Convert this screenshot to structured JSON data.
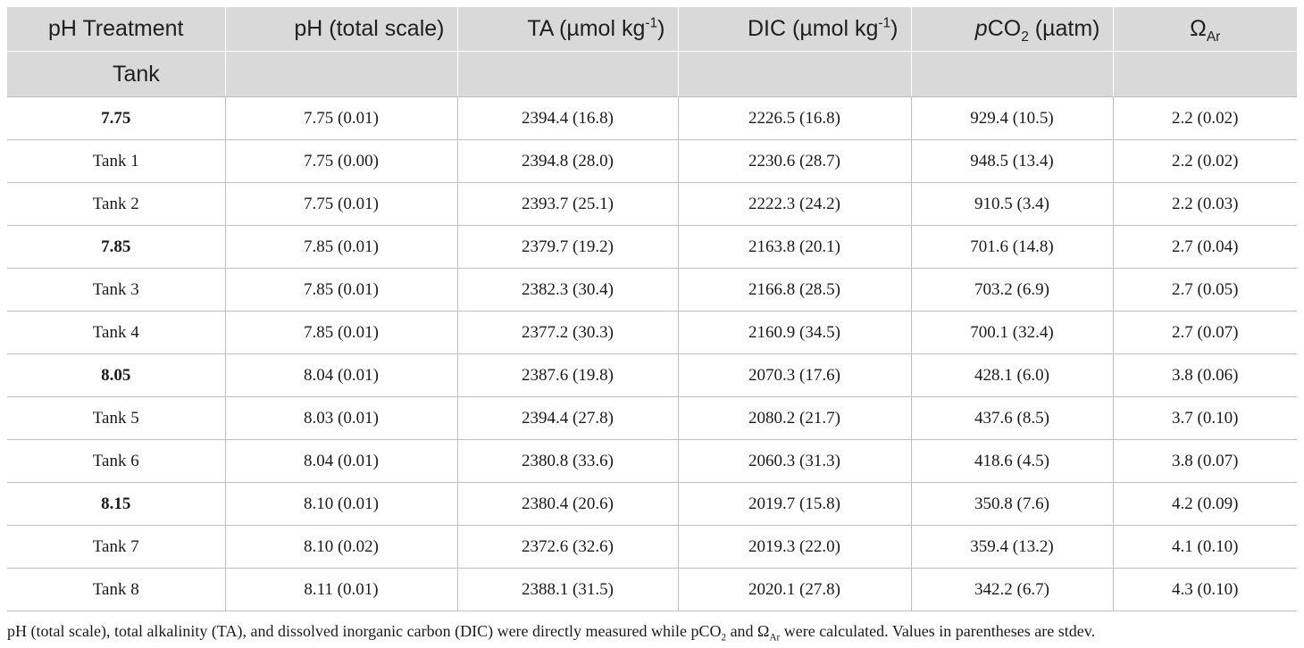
{
  "table": {
    "headers": {
      "treatment": "pH Treatment",
      "ph": "pH (total scale)",
      "ta": {
        "main": "TA (µmol kg",
        "sup": "-1",
        "tail": ")"
      },
      "dic": {
        "main": "DIC (µmol kg",
        "sup": "-1",
        "tail": ")"
      },
      "pco2": {
        "italic": "p",
        "main": "CO",
        "sub": "2",
        "tail": " (µatm)"
      },
      "omega": {
        "main": "Ω",
        "sub": "Ar"
      }
    },
    "subheader": "Tank",
    "rows": [
      {
        "type": "group",
        "cells": [
          "7.75",
          "7.75 (0.01)",
          "2394.4 (16.8)",
          "2226.5 (16.8)",
          "929.4 (10.5)",
          "2.2 (0.02)"
        ]
      },
      {
        "type": "tank",
        "cells": [
          "Tank 1",
          "7.75 (0.00)",
          "2394.8 (28.0)",
          "2230.6 (28.7)",
          "948.5 (13.4)",
          "2.2 (0.02)"
        ]
      },
      {
        "type": "tank",
        "cells": [
          "Tank 2",
          "7.75 (0.01)",
          "2393.7 (25.1)",
          "2222.3 (24.2)",
          "910.5 (3.4)",
          "2.2 (0.03)"
        ]
      },
      {
        "type": "group",
        "cells": [
          "7.85",
          "7.85 (0.01)",
          "2379.7 (19.2)",
          "2163.8 (20.1)",
          "701.6 (14.8)",
          "2.7 (0.04)"
        ]
      },
      {
        "type": "tank",
        "cells": [
          "Tank 3",
          "7.85 (0.01)",
          "2382.3 (30.4)",
          "2166.8 (28.5)",
          "703.2 (6.9)",
          "2.7 (0.05)"
        ]
      },
      {
        "type": "tank",
        "cells": [
          "Tank 4",
          "7.85 (0.01)",
          "2377.2 (30.3)",
          "2160.9 (34.5)",
          "700.1 (32.4)",
          "2.7 (0.07)"
        ]
      },
      {
        "type": "group",
        "cells": [
          "8.05",
          "8.04 (0.01)",
          "2387.6 (19.8)",
          "2070.3 (17.6)",
          "428.1 (6.0)",
          "3.8 (0.06)"
        ]
      },
      {
        "type": "tank",
        "cells": [
          "Tank 5",
          "8.03 (0.01)",
          "2394.4 (27.8)",
          "2080.2 (21.7)",
          "437.6 (8.5)",
          "3.7 (0.10)"
        ]
      },
      {
        "type": "tank",
        "cells": [
          "Tank 6",
          "8.04 (0.01)",
          "2380.8 (33.6)",
          "2060.3 (31.3)",
          "418.6 (4.5)",
          "3.8 (0.07)"
        ]
      },
      {
        "type": "group",
        "cells": [
          "8.15",
          "8.10 (0.01)",
          "2380.4 (20.6)",
          "2019.7 (15.8)",
          "350.8 (7.6)",
          "4.2 (0.09)"
        ]
      },
      {
        "type": "tank",
        "cells": [
          "Tank 7",
          "8.10 (0.02)",
          "2372.6 (32.6)",
          "2019.3 (22.0)",
          "359.4 (13.2)",
          "4.1 (0.10)"
        ]
      },
      {
        "type": "tank",
        "cells": [
          "Tank 8",
          "8.11 (0.01)",
          "2388.1 (31.5)",
          "2020.1 (27.8)",
          "342.2 (6.7)",
          "4.3 (0.10)"
        ]
      }
    ]
  },
  "footnote": {
    "part1": "pH (total scale), total alkalinity (TA), and dissolved inorganic carbon (DIC) were directly measured while pCO",
    "sub1": "2",
    "part2": " and Ω",
    "sub2": "Ar",
    "part3": " were calculated. Values in parentheses are stdev."
  },
  "colors": {
    "header_bg": "#d9d9d9",
    "grid": "#bdbdbd",
    "text": "#1a1a1a"
  }
}
